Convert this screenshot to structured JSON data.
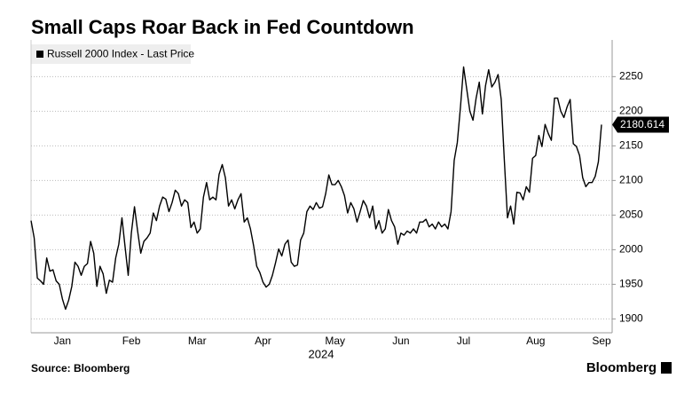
{
  "chart_data": {
    "type": "line",
    "title": "Small Caps Roar Back in Fed Countdown",
    "xlabel": "2024",
    "source": "Source: Bloomberg",
    "brand": "Bloomberg",
    "grid": true,
    "legend": "top-left",
    "ylim": [
      1880,
      2303
    ],
    "yticks": [
      1900,
      1950,
      2000,
      2050,
      2100,
      2150,
      2200,
      2250
    ],
    "categories": [
      null,
      null,
      null,
      null,
      null,
      null,
      null,
      null,
      null,
      null,
      "Jan",
      null,
      null,
      null,
      null,
      null,
      null,
      null,
      null,
      null,
      null,
      null,
      null,
      null,
      null,
      null,
      null,
      null,
      null,
      null,
      null,
      null,
      "Feb",
      null,
      null,
      null,
      null,
      null,
      null,
      null,
      null,
      null,
      null,
      null,
      null,
      null,
      null,
      null,
      null,
      null,
      null,
      null,
      null,
      "Mar",
      null,
      null,
      null,
      null,
      null,
      null,
      null,
      null,
      null,
      null,
      null,
      null,
      null,
      null,
      null,
      null,
      null,
      null,
      null,
      null,
      "Apr",
      null,
      null,
      null,
      null,
      null,
      null,
      null,
      null,
      null,
      null,
      null,
      null,
      null,
      null,
      null,
      null,
      null,
      null,
      null,
      null,
      null,
      null,
      "May",
      null,
      null,
      null,
      null,
      null,
      null,
      null,
      null,
      null,
      null,
      null,
      null,
      null,
      null,
      null,
      null,
      null,
      null,
      null,
      null,
      "Jun",
      null,
      null,
      null,
      null,
      null,
      null,
      null,
      null,
      null,
      null,
      null,
      null,
      null,
      null,
      null,
      null,
      null,
      null,
      null,
      "Jul",
      null,
      null,
      null,
      null,
      null,
      null,
      null,
      null,
      null,
      null,
      null,
      null,
      null,
      null,
      null,
      null,
      null,
      null,
      null,
      null,
      null,
      null,
      "Aug",
      null,
      null,
      null,
      null,
      null,
      null,
      null,
      null,
      null,
      null,
      null,
      null,
      null,
      null,
      null,
      null,
      null,
      null,
      null,
      null,
      "Sep"
    ],
    "series": [
      {
        "name": "Russell 2000 Index - Last Price",
        "color": "#000000",
        "values": [
          2042,
          2017,
          1959,
          1955,
          1950,
          1988,
          1969,
          1971,
          1955,
          1950,
          1929,
          1914,
          1927,
          1947,
          1982,
          1976,
          1963,
          1976,
          1980,
          2012,
          1995,
          1947,
          1976,
          1965,
          1937,
          1956,
          1953,
          1988,
          2008,
          2046,
          2004,
          1963,
          2024,
          2062,
          2027,
          1995,
          2012,
          2017,
          2024,
          2053,
          2042,
          2063,
          2076,
          2073,
          2055,
          2068,
          2086,
          2081,
          2063,
          2072,
          2068,
          2032,
          2040,
          2024,
          2030,
          2076,
          2097,
          2072,
          2076,
          2072,
          2109,
          2123,
          2104,
          2063,
          2072,
          2059,
          2072,
          2081,
          2040,
          2046,
          2030,
          2006,
          1976,
          1967,
          1953,
          1946,
          1950,
          1963,
          1981,
          2001,
          1991,
          2008,
          2014,
          1982,
          1976,
          1978,
          2014,
          2024,
          2055,
          2063,
          2058,
          2068,
          2060,
          2062,
          2081,
          2108,
          2094,
          2094,
          2100,
          2091,
          2078,
          2053,
          2068,
          2059,
          2040,
          2055,
          2071,
          2063,
          2046,
          2063,
          2030,
          2042,
          2024,
          2030,
          2058,
          2042,
          2033,
          2008,
          2024,
          2021,
          2027,
          2024,
          2030,
          2024,
          2040,
          2040,
          2044,
          2033,
          2037,
          2030,
          2040,
          2033,
          2037,
          2030,
          2055,
          2129,
          2155,
          2206,
          2264,
          2232,
          2200,
          2187,
          2219,
          2242,
          2196,
          2237,
          2260,
          2235,
          2242,
          2253,
          2217,
          2129,
          2046,
          2063,
          2037,
          2083,
          2082,
          2072,
          2091,
          2083,
          2132,
          2136,
          2165,
          2149,
          2181,
          2168,
          2158,
          2219,
          2219,
          2200,
          2191,
          2206,
          2217,
          2153,
          2149,
          2136,
          2104,
          2091,
          2097,
          2097,
          2106,
          2127,
          2180.614
        ]
      }
    ]
  }
}
